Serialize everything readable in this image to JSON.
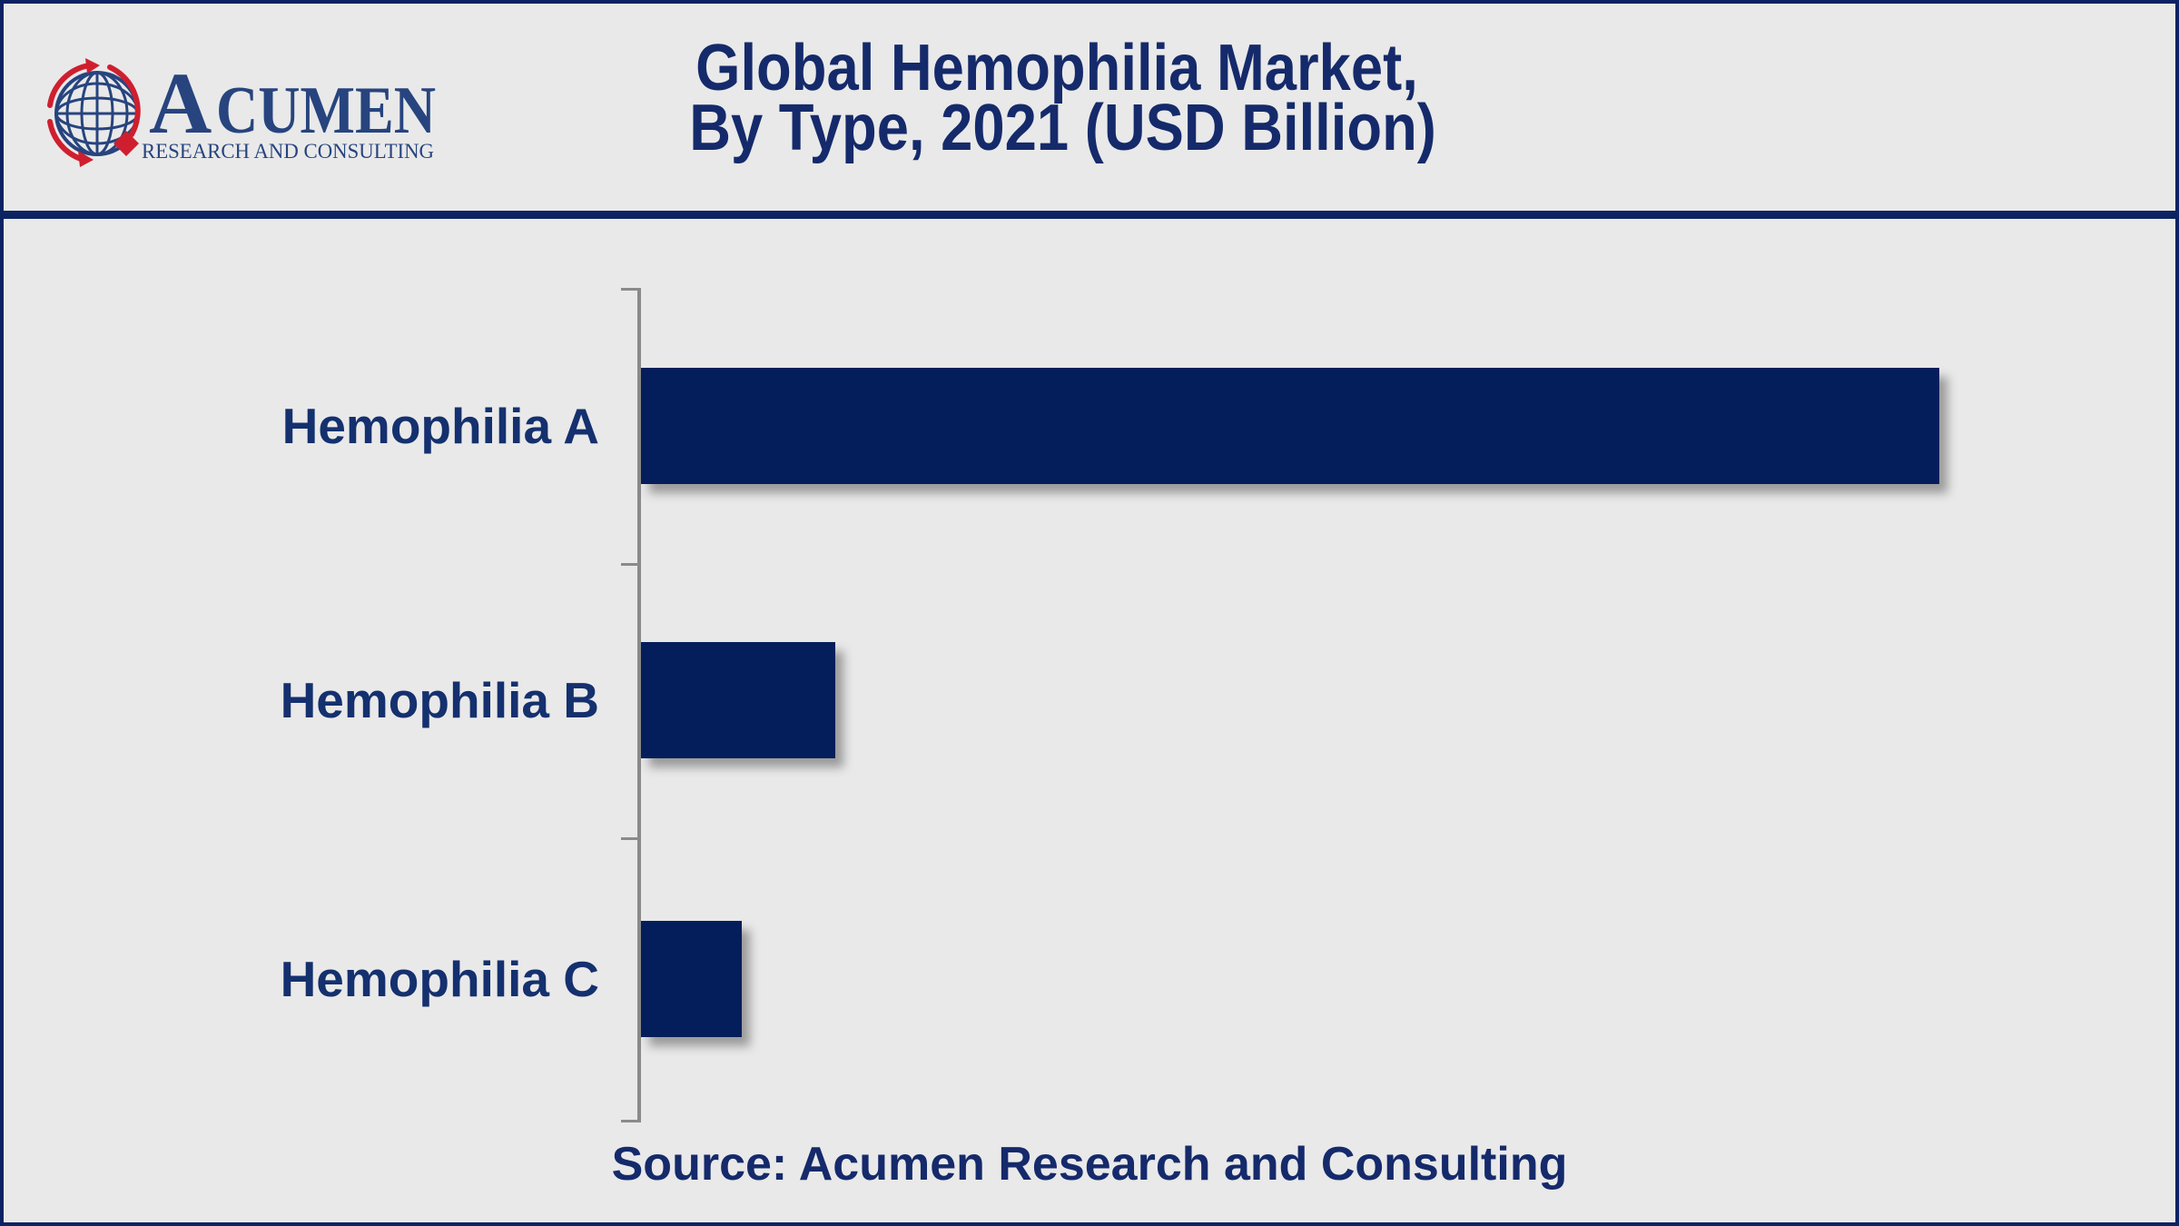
{
  "page": {
    "background_color": "#e9e9e9",
    "border_color": "#0c2363"
  },
  "header": {
    "logo": {
      "brand_initial": "A",
      "brand_rest": "CUMEN",
      "tagline": "RESEARCH AND CONSULTING",
      "brand_color": "#27447f",
      "accent_red": "#cf1f2f"
    },
    "title_line1": "Global Hemophilia Market,",
    "title_line2": "By Type, 2021 (USD Billion)",
    "title_color": "#152a6b"
  },
  "chart_data": {
    "type": "bar",
    "orientation": "horizontal",
    "title": "Global Hemophilia Market, By Type, 2021 (USD Billion)",
    "xlabel": "",
    "ylabel": "",
    "unit": "USD Billion",
    "categories": [
      "Hemophilia A",
      "Hemophilia B",
      "Hemophilia C"
    ],
    "values_relative_pct_of_max": [
      100,
      15,
      7.8
    ],
    "bar_length_fraction_of_plot": [
      0.848,
      0.127,
      0.066
    ],
    "value_labels_shown": false,
    "gridlines_shown": false,
    "axis_ticks_shown": true,
    "bar_color": "#041e5b",
    "axis_color": "#8a8a8a",
    "label_color": "#14306e"
  },
  "footer": {
    "source_text": "Source: Acumen Research and Consulting",
    "color": "#152a6b"
  }
}
